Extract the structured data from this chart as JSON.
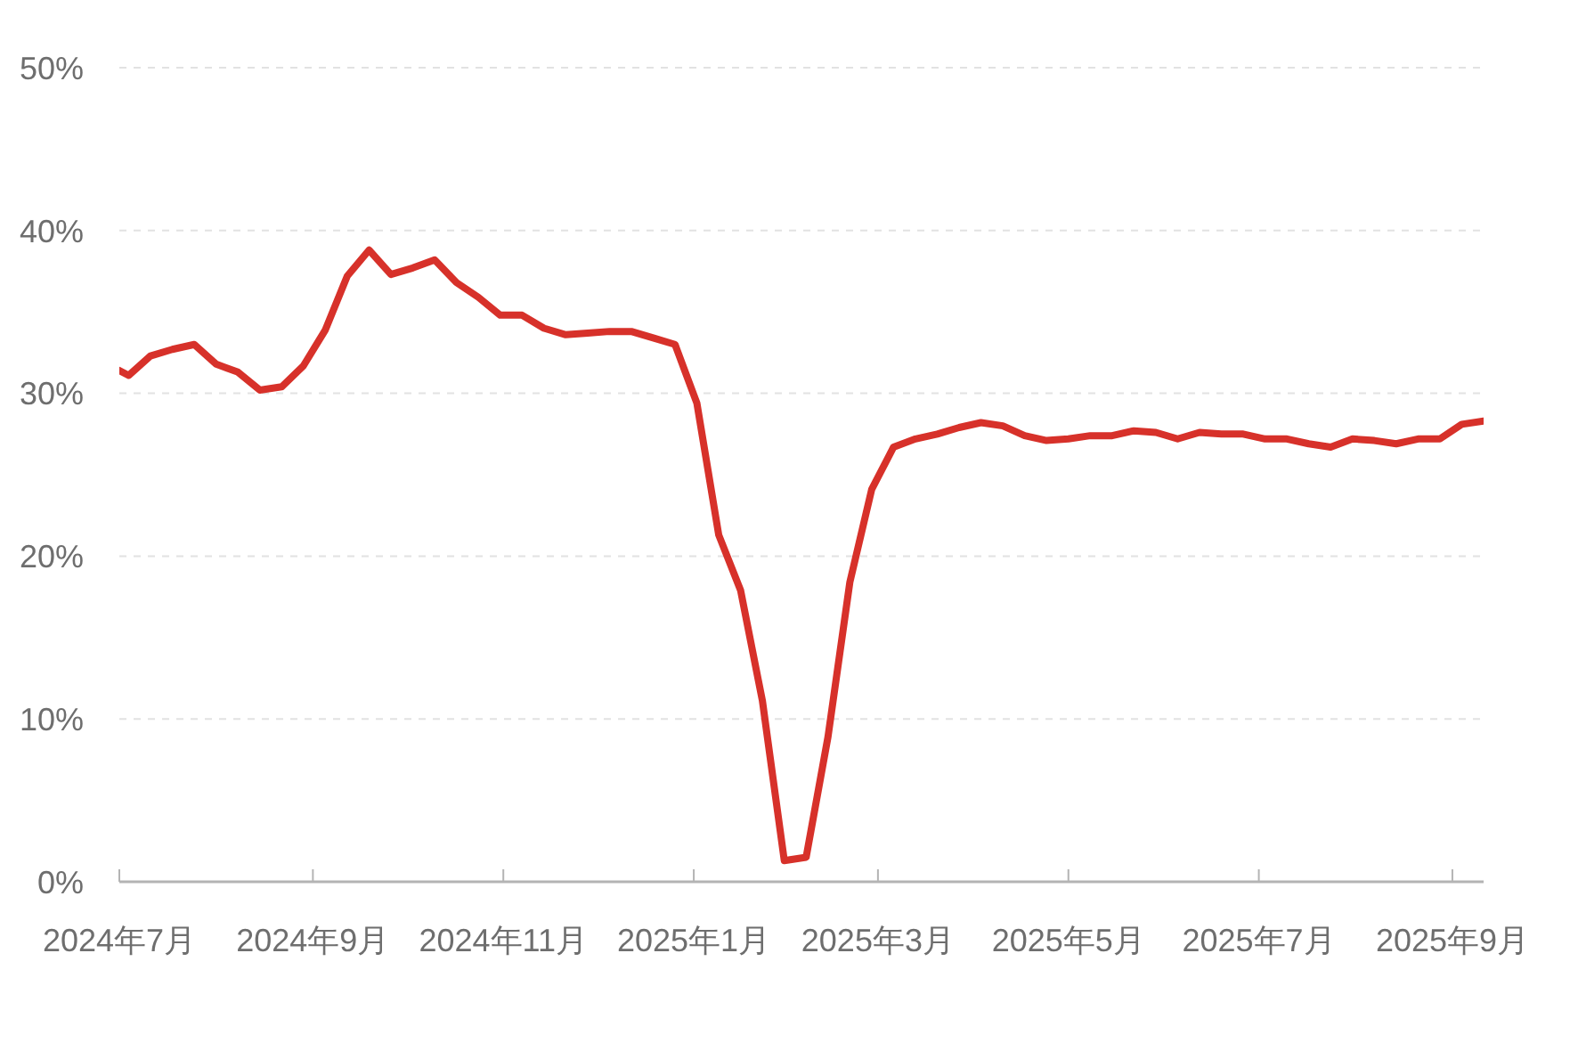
{
  "chart_data": {
    "type": "line",
    "x": [
      "2024-07-01",
      "2024-07-04",
      "2024-07-11",
      "2024-07-18",
      "2024-07-25",
      "2024-08-01",
      "2024-08-08",
      "2024-08-15",
      "2024-08-22",
      "2024-08-29",
      "2024-09-05",
      "2024-09-12",
      "2024-09-19",
      "2024-09-26",
      "2024-10-03",
      "2024-10-10",
      "2024-10-17",
      "2024-10-24",
      "2024-10-31",
      "2024-11-07",
      "2024-11-14",
      "2024-11-21",
      "2024-11-28",
      "2024-12-05",
      "2024-12-12",
      "2024-12-19",
      "2024-12-26",
      "2025-01-02",
      "2025-01-09",
      "2025-01-16",
      "2025-01-23",
      "2025-01-30",
      "2025-02-06",
      "2025-02-13",
      "2025-02-20",
      "2025-02-27",
      "2025-03-06",
      "2025-03-13",
      "2025-03-20",
      "2025-03-27",
      "2025-04-03",
      "2025-04-10",
      "2025-04-17",
      "2025-04-24",
      "2025-05-01",
      "2025-05-08",
      "2025-05-15",
      "2025-05-22",
      "2025-05-29",
      "2025-06-05",
      "2025-06-12",
      "2025-06-19",
      "2025-06-26",
      "2025-07-03",
      "2025-07-10",
      "2025-07-17",
      "2025-07-24",
      "2025-07-31",
      "2025-08-07",
      "2025-08-14",
      "2025-08-21",
      "2025-08-28",
      "2025-09-04",
      "2025-09-11"
    ],
    "values": [
      31.4,
      31.1,
      32.3,
      32.7,
      33.0,
      31.8,
      31.3,
      30.2,
      30.4,
      31.7,
      33.9,
      37.2,
      38.8,
      37.3,
      37.7,
      38.2,
      36.8,
      35.9,
      34.8,
      34.8,
      34.0,
      33.6,
      33.7,
      33.8,
      33.8,
      33.4,
      33.0,
      29.4,
      21.3,
      17.9,
      11.1,
      1.3,
      1.5,
      8.9,
      18.4,
      24.1,
      26.7,
      27.2,
      27.5,
      27.9,
      28.2,
      28.0,
      27.4,
      27.1,
      27.2,
      27.4,
      27.4,
      27.7,
      27.6,
      27.2,
      27.6,
      27.5,
      27.5,
      27.2,
      27.2,
      26.9,
      26.7,
      27.2,
      27.1,
      26.9,
      27.2,
      27.2,
      28.1,
      28.3
    ],
    "color": "#d7312a",
    "xlim": [
      "2024-07-01",
      "2025-09-11"
    ],
    "xticks": [
      {
        "value": "2024-07-01",
        "label": "2024年7月"
      },
      {
        "value": "2024-09-01",
        "label": "2024年9月"
      },
      {
        "value": "2024-11-01",
        "label": "2024年11月"
      },
      {
        "value": "2025-01-01",
        "label": "2025年1月"
      },
      {
        "value": "2025-03-01",
        "label": "2025年3月"
      },
      {
        "value": "2025-05-01",
        "label": "2025年5月"
      },
      {
        "value": "2025-07-01",
        "label": "2025年7月"
      },
      {
        "value": "2025-09-01",
        "label": "2025年9月"
      }
    ],
    "ylim": [
      0,
      50
    ],
    "yticks": [
      {
        "value": 0,
        "label": "0%"
      },
      {
        "value": 10,
        "label": "10%"
      },
      {
        "value": 20,
        "label": "20%"
      },
      {
        "value": 30,
        "label": "30%"
      },
      {
        "value": 40,
        "label": "40%"
      },
      {
        "value": 50,
        "label": "50%"
      }
    ],
    "grid": "y",
    "marker": "none",
    "line_style": "solid"
  }
}
